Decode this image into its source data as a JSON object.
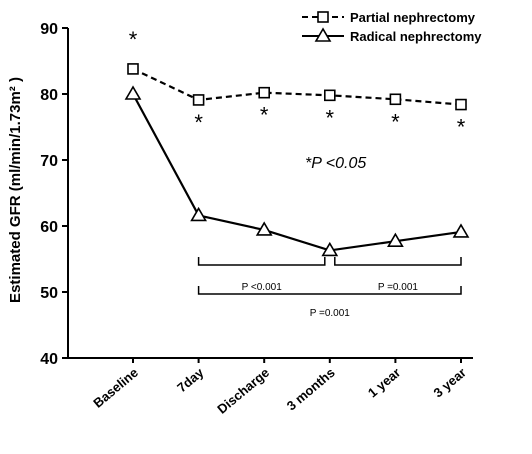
{
  "chart_data": {
    "type": "line",
    "y_label": "Estimated GFR (ml/min/1.73m² )",
    "categories": [
      "Baseline",
      "7day",
      "Discharge",
      "3 months",
      "1 year",
      "3 year"
    ],
    "series": [
      {
        "name": "Partial nephrectomy",
        "color": "#000000",
        "dash": true,
        "marker": "square",
        "values": [
          83.8,
          79.1,
          80.2,
          79.8,
          79.2,
          78.4
        ]
      },
      {
        "name": "Radical nephrectomy",
        "color": "#000000",
        "dash": false,
        "marker": "triangle",
        "values": [
          80.0,
          61.6,
          59.4,
          56.3,
          57.7,
          59.1
        ]
      }
    ],
    "significance_marks": [
      "*",
      "*",
      "*",
      "*",
      "*",
      "*"
    ],
    "significance_note": "*P <0.05",
    "comparisons": [
      "P <0.001",
      "P =0.001",
      "P =0.001"
    ],
    "ylim": [
      40,
      90
    ],
    "yticks": [
      40,
      50,
      60,
      70,
      80,
      90
    ],
    "legend": "upper right",
    "grid": false
  }
}
